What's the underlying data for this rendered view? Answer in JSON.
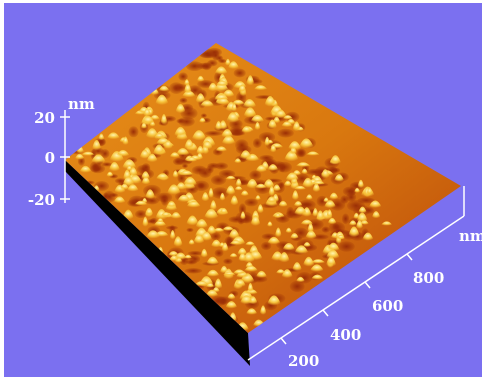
{
  "chart_data": {
    "type": "surface",
    "title": "",
    "z_axis": {
      "label": "nm",
      "ticks": [
        20,
        0,
        -20
      ]
    },
    "x_axis": {
      "label": "nm",
      "ticks": [
        200,
        400,
        600,
        800
      ]
    },
    "colors": {
      "background": "#7b70f0",
      "surface_dark": "#b0420a",
      "surface_mid": "#e08a10",
      "surface_light": "#fff0a0",
      "side_wall": "#000000",
      "axis": "#ffffff"
    }
  }
}
